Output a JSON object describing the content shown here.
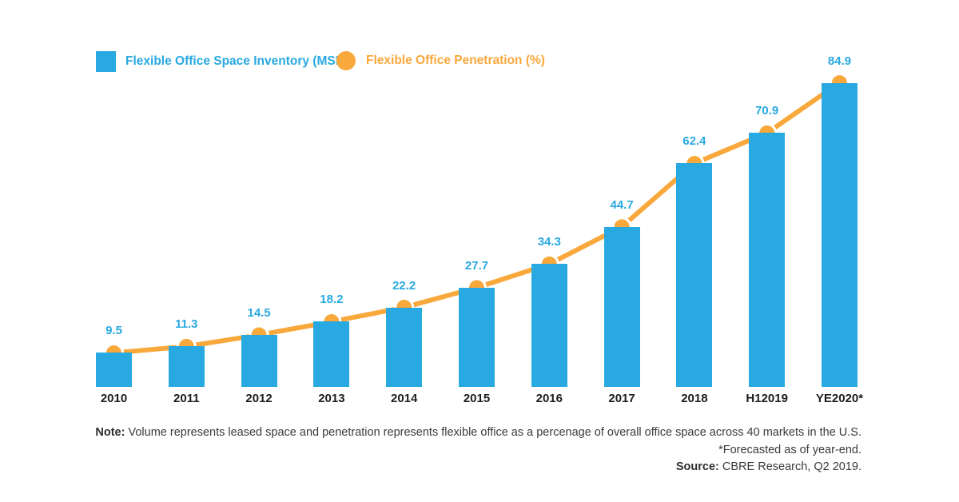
{
  "legend": {
    "items": [
      {
        "label": "Flexible Office Space Inventory (MSF)",
        "color": "#29a9e1",
        "shape": "square"
      },
      {
        "label": "Flexible Office Penetration (%)",
        "color": "#f9a83c",
        "shape": "circle"
      }
    ]
  },
  "chart_data": {
    "type": "bar+line combo",
    "categories": [
      "2010",
      "2011",
      "2012",
      "2013",
      "2014",
      "2015",
      "2016",
      "2017",
      "2018",
      "H12019",
      "YE2020*"
    ],
    "series": [
      {
        "name": "Flexible Office Space Inventory (MSF)",
        "type": "bar",
        "color": "#29a9e1",
        "values": [
          9.5,
          11.3,
          14.5,
          18.2,
          22.2,
          27.7,
          34.3,
          44.7,
          62.4,
          70.9,
          84.9
        ],
        "value_labels_shown": true,
        "value_label_color": "#29a9e1"
      },
      {
        "name": "Flexible Office Penetration (%)",
        "type": "line",
        "color": "#f9a83c",
        "marker": "circle-with-white-ring",
        "value_labels_shown": false,
        "plotted_at_bar_tops": true
      }
    ],
    "grid": false,
    "axes_visible": false,
    "legend_position": "top-left",
    "value_labels_position": "above markers"
  },
  "footer": {
    "note_label": "Note:",
    "note_text": "Volume represents leased space and penetration represents flexible office as a percenage of overall office space across 40 markets in the U.S.",
    "forecast_text": "*Forecasted as of year-end.",
    "source_label": "Source:",
    "source_text": "CBRE Research, Q2 2019."
  }
}
